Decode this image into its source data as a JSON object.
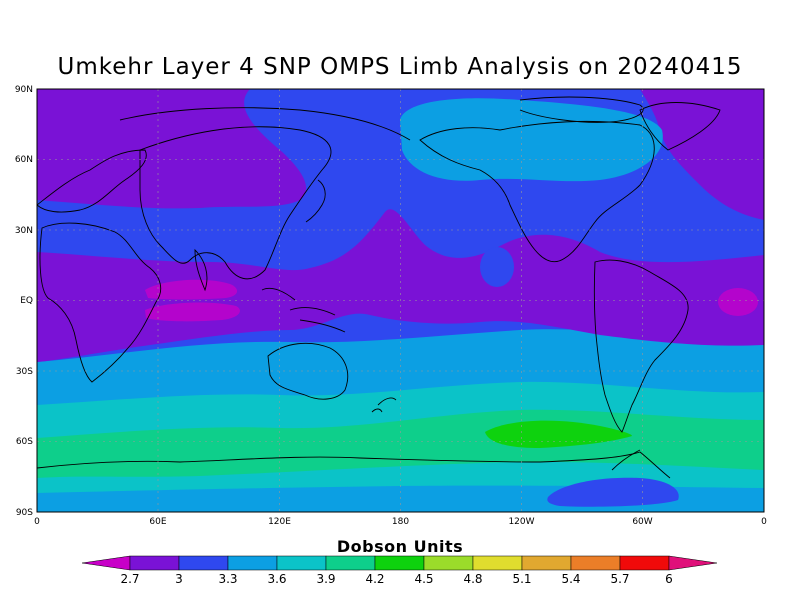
{
  "title": "Umkehr Layer 4 SNP OMPS Limb Analysis on 20240415",
  "lat_labels": [
    "90N",
    "60N",
    "30N",
    "EQ",
    "30S",
    "60S",
    "90S"
  ],
  "lon_labels": [
    "0",
    "60E",
    "120E",
    "180",
    "120W",
    "60W",
    "0"
  ],
  "colorbar": {
    "title": "Dobson Units",
    "levels": [
      "2.7",
      "3",
      "3.3",
      "3.6",
      "3.9",
      "4.2",
      "4.5",
      "4.8",
      "5.1",
      "5.4",
      "5.7",
      "6"
    ],
    "colors": [
      "#c800c8",
      "#7a12d6",
      "#2f48ef",
      "#0c9fe3",
      "#0bc3c8",
      "#0ecf8b",
      "#0ed20e",
      "#9bdc2a",
      "#e0dd2e",
      "#e1a830",
      "#eb7e28",
      "#f00a0a",
      "#e0107a"
    ]
  }
}
